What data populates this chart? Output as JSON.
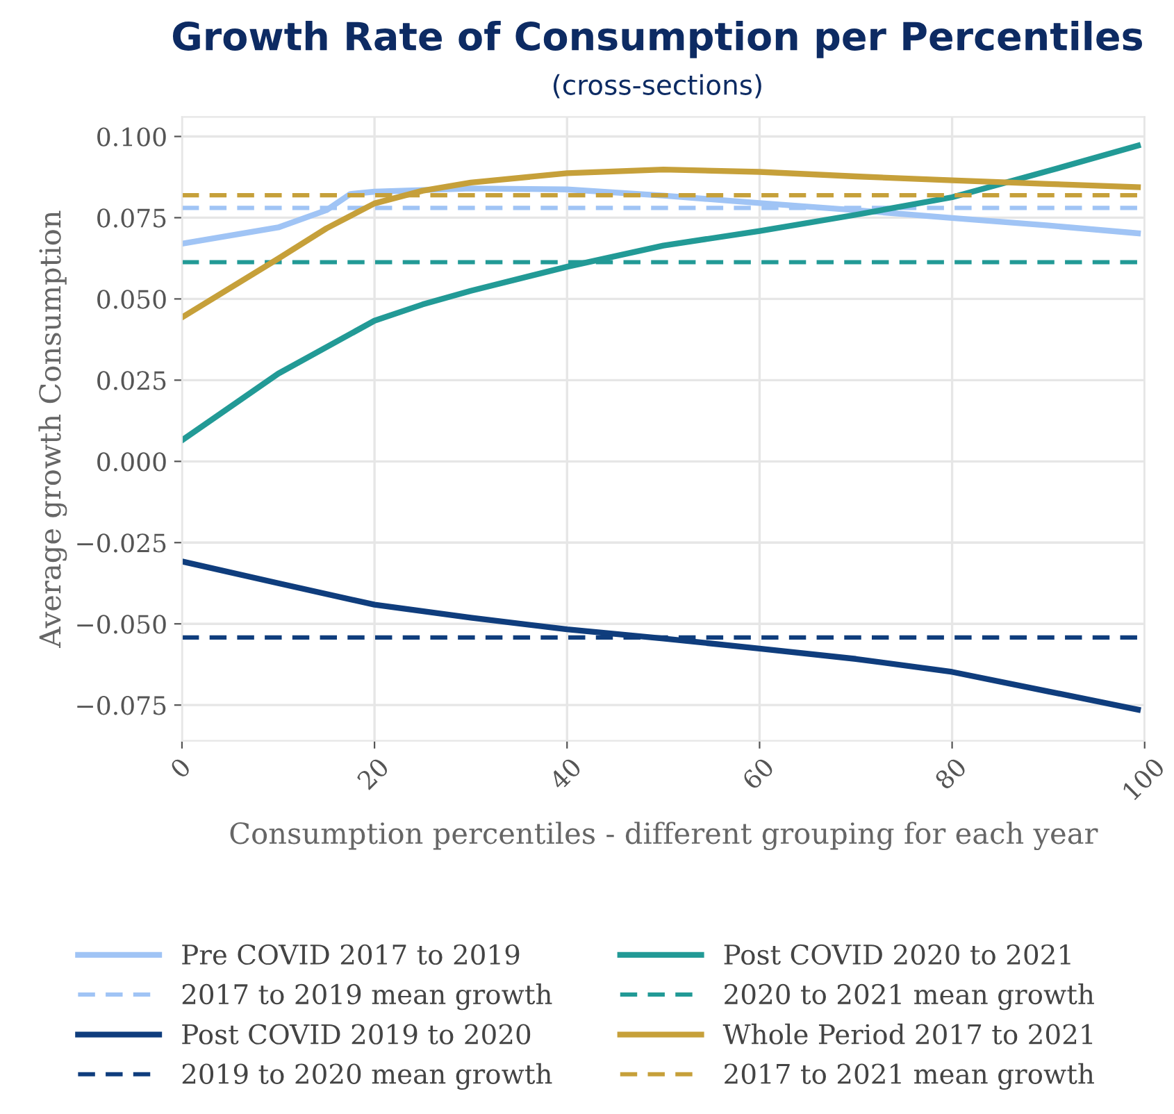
{
  "chart_data": {
    "type": "line",
    "title": "Growth Rate of Consumption per Percentiles",
    "subtitle": "(cross-sections)",
    "xlabel": "Consumption percentiles - different grouping for each year",
    "ylabel": "Average growth Consumption",
    "xlim": [
      0,
      100
    ],
    "ylim": [
      -0.086,
      0.106
    ],
    "xticks": [
      0,
      20,
      40,
      60,
      80,
      100
    ],
    "yticks": [
      {
        "value": -0.075,
        "label": "−0.075"
      },
      {
        "value": -0.05,
        "label": "−0.050"
      },
      {
        "value": -0.025,
        "label": "−0.025"
      },
      {
        "value": 0,
        "label": "0.000"
      },
      {
        "value": 0.025,
        "label": "0.025"
      },
      {
        "value": 0.05,
        "label": "0.050"
      },
      {
        "value": 0.075,
        "label": "0.075"
      },
      {
        "value": 0.1,
        "label": "0.100"
      }
    ],
    "grid": true,
    "legend": "bottom",
    "marker": "none",
    "series": [
      {
        "name": "Pre COVID 2017 to 2019",
        "color": "#a0c4f5",
        "line_style": "solid",
        "x": [
          0,
          10,
          15,
          17.5,
          20,
          30,
          40,
          50,
          60,
          70,
          80,
          90,
          99.3
        ],
        "values": [
          0.067,
          0.072,
          0.0773,
          0.0823,
          0.083,
          0.084,
          0.0837,
          0.0818,
          0.0795,
          0.0773,
          0.0749,
          0.0726,
          0.0702
        ]
      },
      {
        "name": "2017 to 2019 mean growth",
        "color": "#a0c4f5",
        "line_style": "dashed",
        "x": [
          0,
          100
        ],
        "values": [
          0.078,
          0.078
        ]
      },
      {
        "name": "Post COVID 2019 to 2020",
        "color": "#0f3d7d",
        "line_style": "solid",
        "x": [
          0,
          10,
          20,
          30,
          40,
          50,
          60,
          70,
          80,
          90,
          99.3
        ],
        "values": [
          -0.0308,
          -0.0375,
          -0.0441,
          -0.0481,
          -0.0517,
          -0.0545,
          -0.0576,
          -0.0608,
          -0.0648,
          -0.0708,
          -0.0764
        ]
      },
      {
        "name": "2019 to 2020 mean growth",
        "color": "#0f3d7d",
        "line_style": "dashed",
        "x": [
          0,
          100
        ],
        "values": [
          -0.0542,
          -0.0542
        ]
      },
      {
        "name": "Post COVID 2020 to 2021",
        "color": "#229a96",
        "line_style": "solid",
        "x": [
          0,
          10,
          20,
          25,
          30,
          40,
          50,
          60,
          70,
          80,
          90,
          99.3
        ],
        "values": [
          0.0065,
          0.027,
          0.0433,
          0.0483,
          0.0525,
          0.0599,
          0.0664,
          0.0709,
          0.0759,
          0.0813,
          0.0894,
          0.0972
        ]
      },
      {
        "name": "2020 to 2021 mean growth",
        "color": "#229a96",
        "line_style": "dashed",
        "x": [
          0,
          100
        ],
        "values": [
          0.0613,
          0.0613
        ]
      },
      {
        "name": "Whole Period 2017 to 2021",
        "color": "#c6a03a",
        "line_style": "solid",
        "x": [
          0,
          10,
          15,
          20,
          25,
          30,
          40,
          50,
          60,
          70,
          80,
          90,
          99.3
        ],
        "values": [
          0.0443,
          0.0624,
          0.0717,
          0.0794,
          0.0833,
          0.0858,
          0.0887,
          0.0898,
          0.0891,
          0.0877,
          0.0865,
          0.0854,
          0.0844
        ]
      },
      {
        "name": "2017 to 2021 mean growth",
        "color": "#c6a03a",
        "line_style": "dashed",
        "x": [
          0,
          100
        ],
        "values": [
          0.0819,
          0.0819
        ]
      }
    ]
  }
}
